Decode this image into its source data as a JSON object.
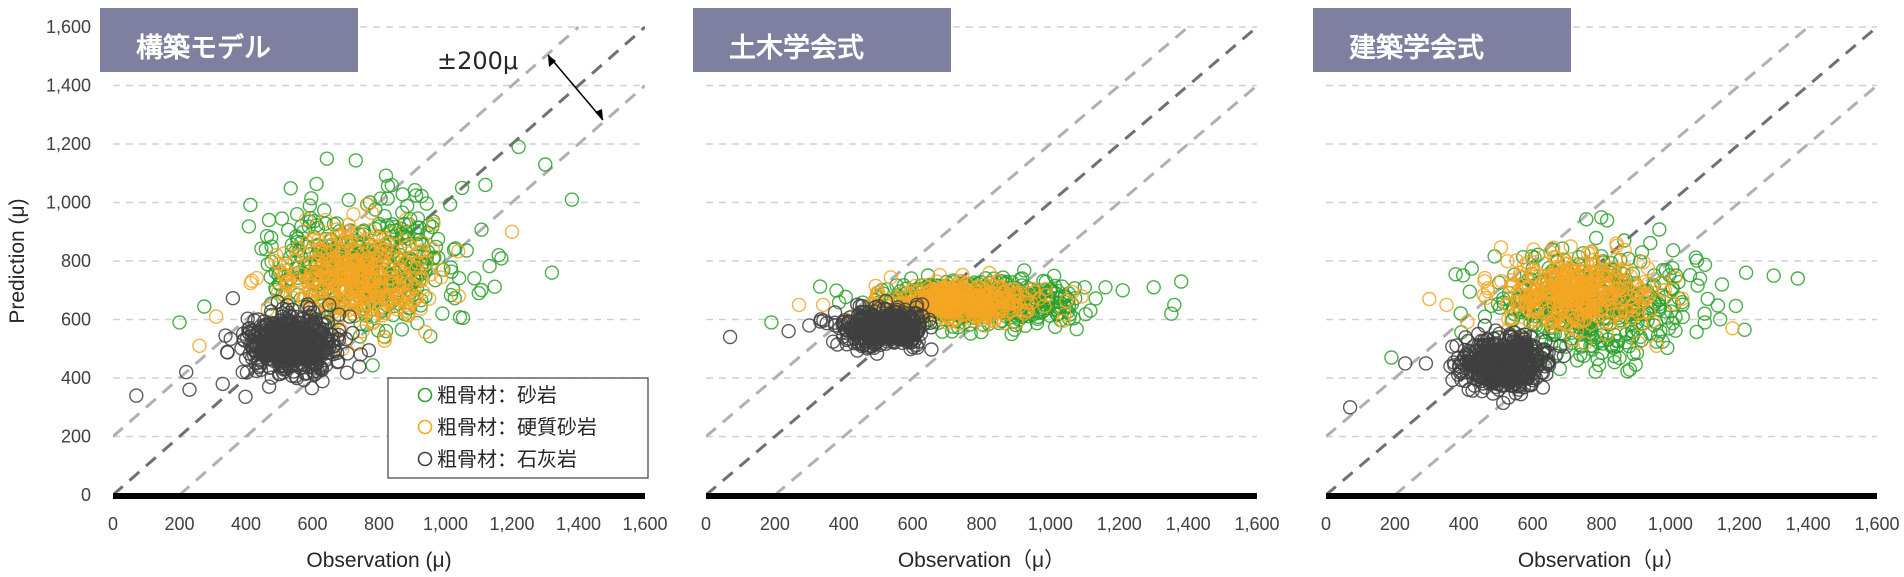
{
  "chart_data": [
    {
      "type": "scatter",
      "panel_label": "構築モデル",
      "xlabel": "Observation (μ)",
      "ylabel": "Prediction (μ)",
      "xlim": [
        0,
        1600
      ],
      "ylim": [
        0,
        1600
      ],
      "xticks": [
        "0",
        "200",
        "400",
        "600",
        "800",
        "1,000",
        "1,200",
        "1,400",
        "1,600"
      ],
      "yticks": [
        "0",
        "200",
        "400",
        "600",
        "800",
        "1,000",
        "1,200",
        "1,400",
        "1,600"
      ],
      "grid": "horizontal dashed",
      "reference_lines": [
        {
          "name": "y=x",
          "offset": 0,
          "color": "#707070"
        },
        {
          "name": "y=x+200",
          "offset": 200,
          "color": "#b0b0b0"
        },
        {
          "name": "y=x-200",
          "offset": -200,
          "color": "#b0b0b0"
        }
      ],
      "annotation": "±200μ",
      "legend_position": "bottom-right",
      "series": [
        {
          "name": "粗骨材：砂岩",
          "color": "#2ca02c",
          "center": [
            760,
            790
          ],
          "spread": [
            135,
            110
          ],
          "count": 420,
          "outliers": [
            [
              200,
              590
            ],
            [
              460,
              840
            ],
            [
              640,
              830
            ],
            [
              1050,
              1050
            ],
            [
              1120,
              1060
            ],
            [
              1220,
              1190
            ],
            [
              1300,
              1130
            ],
            [
              1380,
              1010
            ],
            [
              1320,
              760
            ],
            [
              1100,
              690
            ],
            [
              1160,
              820
            ]
          ]
        },
        {
          "name": "粗骨材：硬質砂岩",
          "color": "#f5a623",
          "center": [
            720,
            740
          ],
          "spread": [
            110,
            80
          ],
          "count": 380,
          "outliers": [
            [
              260,
              510
            ],
            [
              310,
              610
            ],
            [
              640,
              940
            ],
            [
              1040,
              680
            ],
            [
              1200,
              900
            ]
          ]
        },
        {
          "name": "粗骨材：石灰岩",
          "color": "#404040",
          "center": [
            540,
            520
          ],
          "spread": [
            70,
            55
          ],
          "count": 520,
          "outliers": [
            [
              70,
              340
            ],
            [
              220,
              420
            ],
            [
              230,
              360
            ],
            [
              330,
              380
            ],
            [
              390,
              420
            ]
          ]
        }
      ]
    },
    {
      "type": "scatter",
      "panel_label": "土木学会式",
      "xlabel": "Observation（μ）",
      "ylabel": "",
      "xlim": [
        0,
        1600
      ],
      "ylim": [
        0,
        1600
      ],
      "xticks": [
        "0",
        "200",
        "400",
        "600",
        "800",
        "1,000",
        "1,200",
        "1,400",
        "1,600"
      ],
      "grid": "horizontal dashed",
      "reference_lines": [
        {
          "name": "y=x",
          "offset": 0,
          "color": "#707070"
        },
        {
          "name": "y=x+200",
          "offset": 200,
          "color": "#b0b0b0"
        },
        {
          "name": "y=x-200",
          "offset": -200,
          "color": "#b0b0b0"
        }
      ],
      "series": [
        {
          "name": "粗骨材：砂岩",
          "color": "#2ca02c",
          "center": [
            800,
            660
          ],
          "spread": [
            150,
            40
          ],
          "count": 420,
          "outliers": [
            [
              190,
              590
            ],
            [
              1100,
              710
            ],
            [
              1160,
              710
            ],
            [
              1210,
              700
            ],
            [
              1300,
              710
            ],
            [
              1360,
              650
            ],
            [
              1380,
              730
            ]
          ]
        },
        {
          "name": "粗骨材：硬質砂岩",
          "color": "#f5a623",
          "center": [
            740,
            660
          ],
          "spread": [
            110,
            30
          ],
          "count": 380,
          "outliers": [
            [
              270,
              650
            ],
            [
              340,
              650
            ]
          ]
        },
        {
          "name": "粗骨材：石灰岩",
          "color": "#404040",
          "center": [
            520,
            570
          ],
          "spread": [
            60,
            30
          ],
          "count": 520,
          "outliers": [
            [
              70,
              540
            ],
            [
              240,
              560
            ],
            [
              300,
              580
            ]
          ]
        }
      ]
    },
    {
      "type": "scatter",
      "panel_label": "建築学会式",
      "xlabel": "Observation（μ）",
      "ylabel": "",
      "xlim": [
        0,
        1600
      ],
      "ylim": [
        0,
        1600
      ],
      "xticks": [
        "0",
        "200",
        "400",
        "600",
        "800",
        "1,000",
        "1,200",
        "1,400",
        "1,600"
      ],
      "grid": "horizontal dashed",
      "reference_lines": [
        {
          "name": "y=x",
          "offset": 0,
          "color": "#707070"
        },
        {
          "name": "y=x+200",
          "offset": 200,
          "color": "#b0b0b0"
        },
        {
          "name": "y=x-200",
          "offset": -200,
          "color": "#b0b0b0"
        }
      ],
      "series": [
        {
          "name": "粗骨材：砂岩",
          "color": "#2ca02c",
          "center": [
            760,
            650
          ],
          "spread": [
            150,
            95
          ],
          "count": 420,
          "outliers": [
            [
              190,
              470
            ],
            [
              1220,
              760
            ],
            [
              1300,
              750
            ],
            [
              1370,
              740
            ],
            [
              1150,
              720
            ],
            [
              1100,
              590
            ]
          ]
        },
        {
          "name": "粗骨材：硬質砂岩",
          "color": "#f5a623",
          "center": [
            730,
            690
          ],
          "spread": [
            110,
            60
          ],
          "count": 380,
          "outliers": [
            [
              300,
              670
            ],
            [
              350,
              650
            ],
            [
              1180,
              570
            ],
            [
              960,
              510
            ]
          ]
        },
        {
          "name": "粗骨材：石灰岩",
          "color": "#404040",
          "center": [
            520,
            450
          ],
          "spread": [
            60,
            45
          ],
          "count": 520,
          "outliers": [
            [
              70,
              300
            ],
            [
              230,
              450
            ],
            [
              290,
              450
            ]
          ]
        }
      ]
    }
  ]
}
